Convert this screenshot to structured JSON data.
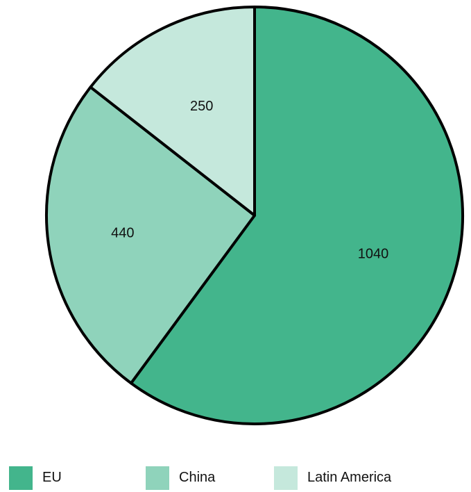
{
  "chart_data": {
    "type": "pie",
    "categories": [
      "EU",
      "China",
      "Latin America"
    ],
    "values": [
      1040,
      440,
      250
    ],
    "data_labels": [
      "1040",
      "440",
      "250"
    ],
    "colors": [
      "#43b58c",
      "#8fd3bb",
      "#c5e8dc"
    ],
    "start_angle": "top, clockwise",
    "legend": "bottom",
    "title": ""
  },
  "legend": {
    "items": [
      {
        "label": "EU",
        "color": "#43b58c"
      },
      {
        "label": "China",
        "color": "#8fd3bb"
      },
      {
        "label": "Latin America",
        "color": "#c5e8dc"
      }
    ]
  }
}
